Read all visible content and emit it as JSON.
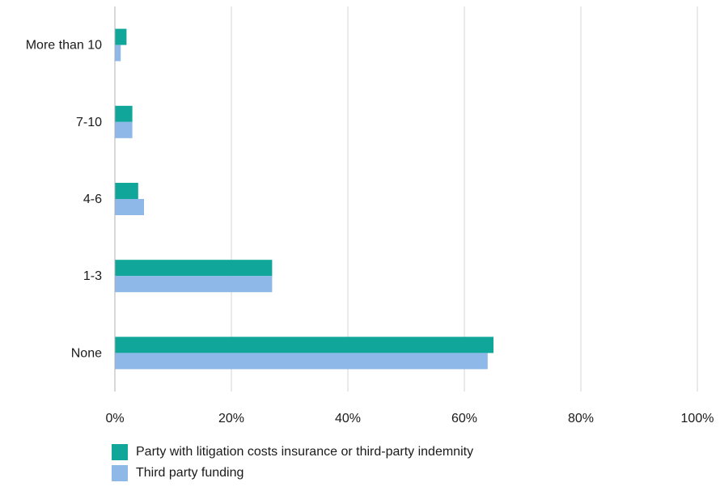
{
  "chart_data": {
    "type": "bar",
    "orientation": "horizontal",
    "categories": [
      "More than 10",
      "7-10",
      "4-6",
      "1-3",
      "None"
    ],
    "series": [
      {
        "name": "Party with litigation costs insurance or third-party indemnity",
        "color": "#10a69a",
        "values": [
          2,
          3,
          4,
          27,
          65
        ]
      },
      {
        "name": "Third party funding",
        "color": "#8db8e8",
        "values": [
          1,
          3,
          5,
          27,
          64
        ]
      }
    ],
    "xlim": [
      0,
      100
    ],
    "xticks": [
      "0%",
      "20%",
      "40%",
      "60%",
      "80%",
      "100%"
    ],
    "xtick_values": [
      0,
      20,
      40,
      60,
      80,
      100
    ],
    "grid": "vertical",
    "legend_position": "bottom-left"
  }
}
